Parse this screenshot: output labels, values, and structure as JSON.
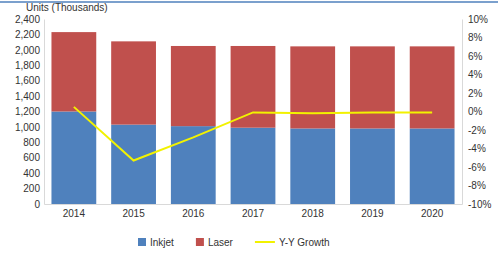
{
  "chart_data": {
    "type": "bar",
    "stacked": true,
    "y_label": "Units (Thousands)",
    "categories": [
      "2014",
      "2015",
      "2016",
      "2017",
      "2018",
      "2019",
      "2020"
    ],
    "series": [
      {
        "name": "Inkjet",
        "type": "bar",
        "color": "#4f81bd",
        "values": [
          1200,
          1030,
          1010,
          990,
          980,
          980,
          980
        ]
      },
      {
        "name": "Laser",
        "type": "bar",
        "color": "#c0504d",
        "values": [
          1030,
          1080,
          1040,
          1060,
          1065,
          1065,
          1065
        ]
      },
      {
        "name": "Y-Y Growth",
        "type": "line",
        "axis": "y2",
        "color": "#f2f200",
        "values": [
          0.5,
          -5.3,
          -2.8,
          -0.1,
          -0.2,
          -0.1,
          -0.1
        ]
      }
    ],
    "ylim": [
      0,
      2400
    ],
    "yticks": [
      0,
      200,
      400,
      600,
      800,
      {
        "value": 1000,
        "label": "1,000"
      },
      {
        "value": 1200,
        "label": "1,200"
      },
      {
        "value": 1400,
        "label": "1,400"
      },
      {
        "value": 1600,
        "label": "1,600"
      },
      {
        "value": 1800,
        "label": "1,800"
      },
      {
        "value": 2000,
        "label": "2,000"
      },
      {
        "value": 2200,
        "label": "2,200"
      },
      {
        "value": 2400,
        "label": "2,400"
      }
    ],
    "y2lim": [
      -10,
      10
    ],
    "y2ticks": [
      {
        "value": -10,
        "label": "-10%"
      },
      {
        "value": -8,
        "label": "-8%"
      },
      {
        "value": -6,
        "label": "-6%"
      },
      {
        "value": -4,
        "label": "-4%"
      },
      {
        "value": -2,
        "label": "-2%"
      },
      {
        "value": 0,
        "label": "0%"
      },
      {
        "value": 2,
        "label": "2%"
      },
      {
        "value": 4,
        "label": "4%"
      },
      {
        "value": 6,
        "label": "6%"
      },
      {
        "value": 8,
        "label": "8%"
      },
      {
        "value": 10,
        "label": "10%"
      }
    ],
    "legend": "bottom",
    "grid": false
  }
}
